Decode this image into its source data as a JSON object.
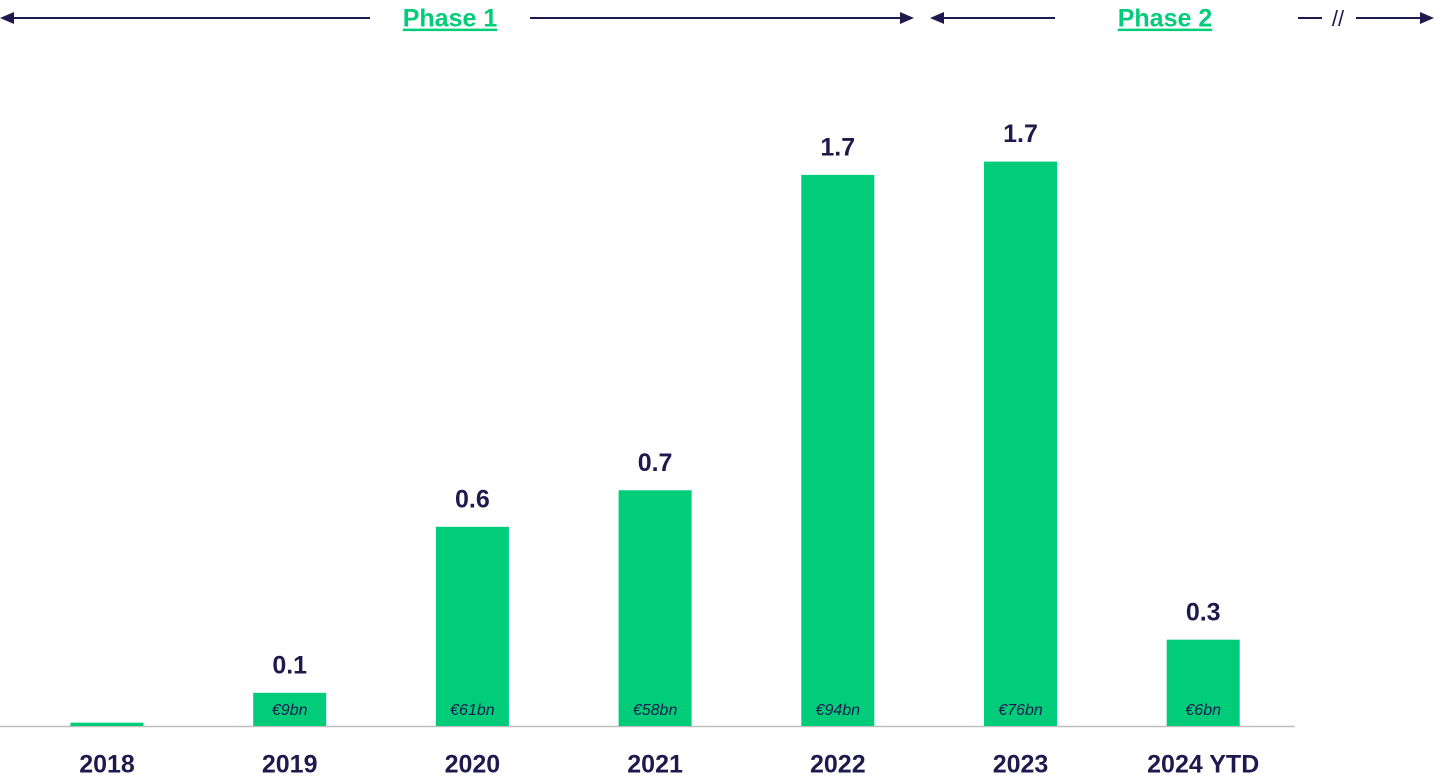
{
  "chart_data": {
    "type": "bar",
    "phases": [
      "Phase 1",
      "Phase 2"
    ],
    "phase_break": "//",
    "categories": [
      "2018",
      "2019",
      "2020",
      "2021",
      "2022",
      "2023",
      "2024 YTD"
    ],
    "values": [
      0.01,
      0.1,
      0.6,
      0.71,
      1.66,
      1.7,
      0.26
    ],
    "value_labels": [
      null,
      "0.1",
      "0.6",
      "0.7",
      "1.7",
      "1.7",
      "0.3"
    ],
    "bar_annotations": [
      null,
      "€9bn",
      "€61bn",
      "€58bn",
      "€94bn",
      "€76bn",
      "€6bn"
    ],
    "color": "#00cc7a"
  }
}
